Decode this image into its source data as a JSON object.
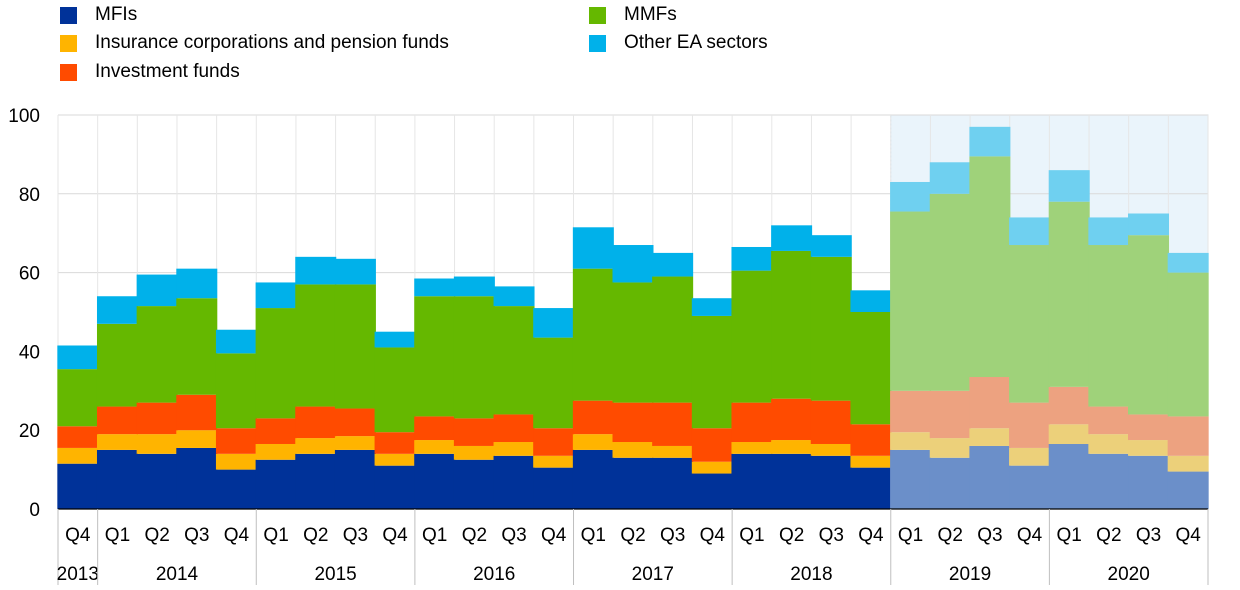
{
  "chart_data": {
    "type": "bar",
    "stacked": true,
    "ylim": [
      0,
      100
    ],
    "yticks": [
      0,
      20,
      40,
      60,
      80,
      100
    ],
    "grid": "horizontal",
    "legend_position": "top",
    "shaded_from_index": 21,
    "categories": [
      "Q4",
      "Q1",
      "Q2",
      "Q3",
      "Q4",
      "Q1",
      "Q2",
      "Q3",
      "Q4",
      "Q1",
      "Q2",
      "Q3",
      "Q4",
      "Q1",
      "Q2",
      "Q3",
      "Q4",
      "Q1",
      "Q2",
      "Q3",
      "Q4",
      "Q1",
      "Q2",
      "Q3",
      "Q4",
      "Q1",
      "Q2",
      "Q3",
      "Q4"
    ],
    "year_groups": [
      {
        "label": "2013",
        "count": 1
      },
      {
        "label": "2014",
        "count": 4
      },
      {
        "label": "2015",
        "count": 4
      },
      {
        "label": "2016",
        "count": 4
      },
      {
        "label": "2017",
        "count": 4
      },
      {
        "label": "2018",
        "count": 4
      },
      {
        "label": "2019",
        "count": 4
      },
      {
        "label": "2020",
        "count": 4
      }
    ],
    "series": [
      {
        "name": "MFIs",
        "color": "#003299",
        "shaded_color": "#6b8fc9",
        "values": [
          11.5,
          15,
          14,
          15.5,
          10,
          12.5,
          14,
          15,
          11,
          14,
          12.5,
          13.5,
          10.5,
          15,
          13,
          13,
          9,
          14,
          14,
          13.5,
          10.5,
          15,
          13,
          16,
          11,
          16.5,
          14,
          13.5,
          9.5
        ]
      },
      {
        "name": "Insurance corporations and pension funds",
        "color": "#ffb400",
        "shaded_color": "#ecd07a",
        "values": [
          4,
          4,
          5,
          4.5,
          4,
          4,
          4,
          3.5,
          3,
          3.5,
          3.5,
          3.5,
          3,
          4,
          4,
          3,
          3,
          3,
          3.5,
          3,
          3,
          4.5,
          5,
          4.5,
          4.5,
          5,
          5,
          4,
          4
        ]
      },
      {
        "name": "Investment funds",
        "color": "#ff4b00",
        "shaded_color": "#eda280",
        "values": [
          5.5,
          7,
          8,
          9,
          6.5,
          6.5,
          8,
          7,
          5.5,
          6,
          7,
          7,
          7,
          8.5,
          10,
          11,
          8.5,
          10,
          10.5,
          11,
          8,
          10.5,
          12,
          13,
          11.5,
          9.5,
          7,
          6.5,
          10
        ]
      },
      {
        "name": "MMFs",
        "color": "#65b800",
        "shaded_color": "#9fd27a",
        "values": [
          14.5,
          21,
          24.5,
          24.5,
          19,
          28,
          31,
          31.5,
          21.5,
          30.5,
          31,
          27.5,
          23,
          33.5,
          30.5,
          32,
          28.5,
          33.5,
          37.5,
          36.5,
          28.5,
          45.5,
          50,
          56,
          40,
          47,
          41,
          45.5,
          36.5
        ]
      },
      {
        "name": "Other EA sectors",
        "color": "#00b1ea",
        "shaded_color": "#6fd0f0",
        "values": [
          6,
          7,
          8,
          7.5,
          6,
          6.5,
          7,
          6.5,
          4,
          4.5,
          5,
          5,
          7.5,
          10.5,
          9.5,
          6,
          4.5,
          6,
          6.5,
          5.5,
          5.5,
          7.5,
          8,
          7.5,
          7,
          8,
          7,
          5.5,
          5
        ]
      }
    ]
  }
}
